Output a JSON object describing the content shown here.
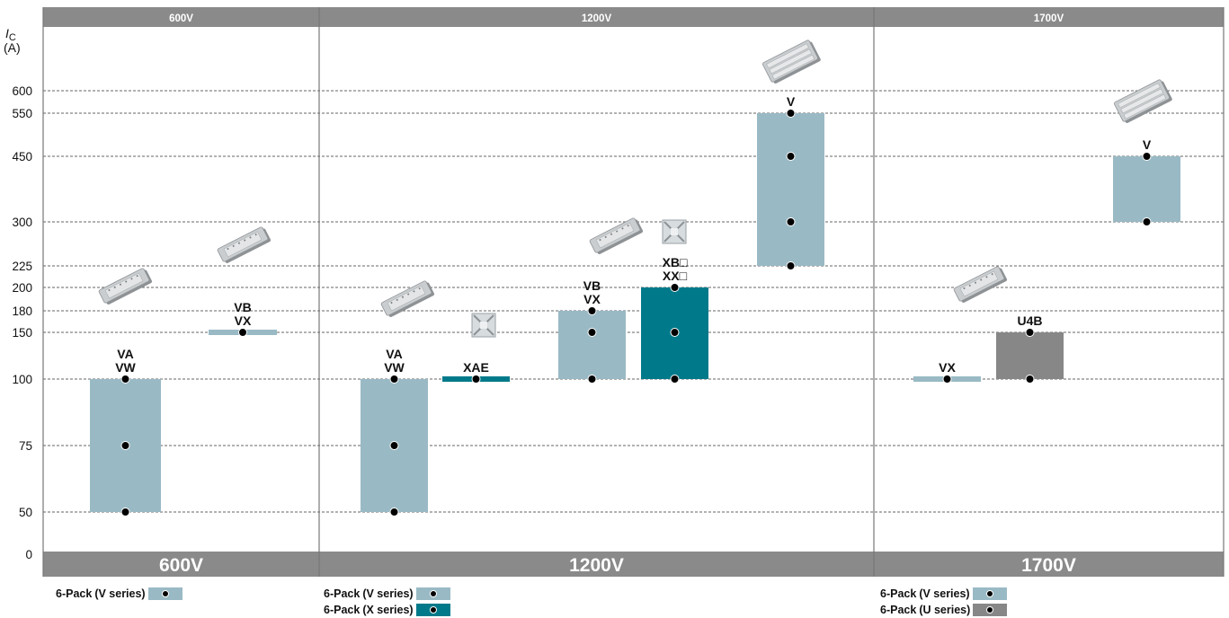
{
  "colors": {
    "v_series": "#99bac5",
    "x_series": "#007a8a",
    "u_series": "#878787",
    "header": "#8a8a8a"
  },
  "header": {
    "sections": [
      "600V",
      "1200V",
      "1700V"
    ]
  },
  "footer": {
    "sections": [
      "600V",
      "1200V",
      "1700V"
    ]
  },
  "chart_data": {
    "type": "bar",
    "ylabel_main": "I",
    "ylabel_sub": "C",
    "yunit": "(A)",
    "yticks": [
      0,
      50,
      75,
      100,
      150,
      180,
      200,
      225,
      300,
      450,
      550,
      600
    ],
    "groups": [
      {
        "voltage": "600V",
        "series": [
          {
            "labels": [
              "VA",
              "VW"
            ],
            "series_type": "V",
            "min": 50,
            "max": 100,
            "points": [
              50,
              75,
              100
            ]
          },
          {
            "labels": [
              "VB",
              "VX"
            ],
            "series_type": "V",
            "min": 150,
            "max": 150,
            "points": [
              150
            ]
          }
        ]
      },
      {
        "voltage": "1200V",
        "series": [
          {
            "labels": [
              "VA",
              "VW"
            ],
            "series_type": "V",
            "min": 50,
            "max": 100,
            "points": [
              50,
              75,
              100
            ]
          },
          {
            "labels": [
              "XAE"
            ],
            "series_type": "X",
            "min": 100,
            "max": 100,
            "points": [
              100
            ]
          },
          {
            "labels": [
              "VB",
              "VX"
            ],
            "series_type": "V",
            "min": 100,
            "max": 180,
            "points": [
              100,
              150,
              180
            ]
          },
          {
            "labels": [
              "XB□",
              "XX□"
            ],
            "series_type": "X",
            "min": 100,
            "max": 200,
            "points": [
              100,
              150,
              200
            ]
          },
          {
            "labels": [
              "V"
            ],
            "series_type": "V",
            "min": 225,
            "max": 550,
            "points": [
              225,
              300,
              450,
              550
            ]
          }
        ]
      },
      {
        "voltage": "1700V",
        "series": [
          {
            "labels": [
              "VX"
            ],
            "series_type": "V",
            "min": 100,
            "max": 100,
            "points": [
              100
            ]
          },
          {
            "labels": [
              "U4B"
            ],
            "series_type": "U",
            "min": 100,
            "max": 150,
            "points": [
              100,
              150
            ]
          },
          {
            "labels": [
              "V"
            ],
            "series_type": "V",
            "min": 300,
            "max": 450,
            "points": [
              300,
              450
            ]
          }
        ]
      }
    ]
  },
  "legend": {
    "g600": [
      {
        "label": "6-Pack",
        "paren": "(V series)",
        "series_type": "V"
      }
    ],
    "g1200": [
      {
        "label": "6-Pack",
        "paren": "(V series)",
        "series_type": "V"
      },
      {
        "label": "6-Pack",
        "paren": "(X series)",
        "series_type": "X"
      }
    ],
    "g1700": [
      {
        "label": "6-Pack",
        "paren": "(V series)",
        "series_type": "V"
      },
      {
        "label": "6-Pack",
        "paren": "(U series)",
        "series_type": "U"
      }
    ]
  }
}
